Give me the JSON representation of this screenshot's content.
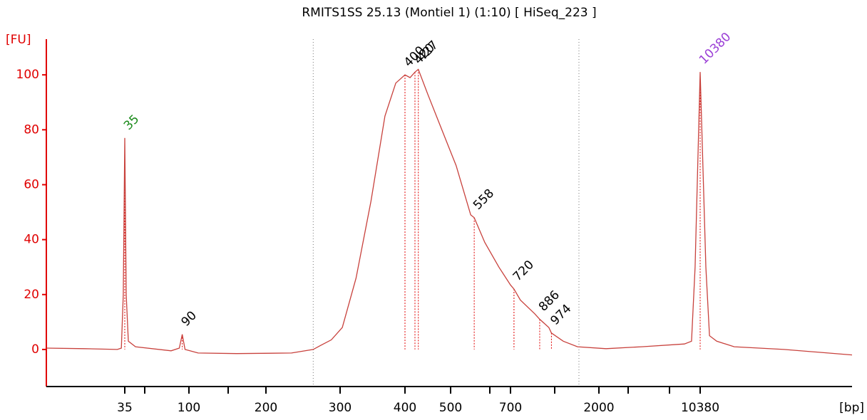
{
  "chart_data": {
    "type": "line",
    "title": "RMITS1SS 25.13 (Montiel 1) (1:10)  [ HiSeq_223 ]",
    "ylabel": "[FU]",
    "xlabel": "[bp]",
    "color": "#c8413c",
    "axis_color": "#e00000",
    "ylim": [
      -13.5,
      113
    ],
    "yticks": [
      0,
      20,
      40,
      60,
      80,
      100
    ],
    "xlim": [
      9,
      73300
    ],
    "xticks": [
      35,
      {
        "value": 50,
        "label": null
      },
      100,
      {
        "value": 150,
        "label": null
      },
      200,
      300,
      400,
      500,
      {
        "value": 600,
        "label": null
      },
      700,
      {
        "value": 1000,
        "label": null
      },
      2000,
      {
        "value": 3000,
        "label": null
      },
      {
        "value": 7000,
        "label": null
      },
      10380
    ],
    "grid": false,
    "x": [
      9,
      17.4,
      30.8,
      33,
      34.1,
      35,
      35.9,
      37.3,
      42.4,
      75.6,
      86,
      90,
      94,
      110,
      160,
      230,
      259,
      270,
      286,
      303,
      322,
      344,
      366,
      384,
      400,
      410,
      420,
      427,
      447,
      479,
      513,
      549,
      558,
      586,
      642,
      700,
      720,
      758,
      851,
      886,
      954,
      974,
      1143,
      1430,
      2208,
      3964,
      8475,
      9288,
      9726,
      10380,
      11170,
      11701,
      12843,
      16095,
      30580,
      73300
    ],
    "values": [
      0.5,
      0.3,
      0,
      0.5,
      20,
      77,
      20,
      3,
      1,
      -0.5,
      0.5,
      5.5,
      0,
      -1.3,
      -1.5,
      -1.3,
      0,
      1.5,
      3.5,
      8,
      26,
      54,
      85,
      97,
      100,
      99,
      101,
      102,
      93,
      80,
      67,
      49,
      48,
      39,
      30,
      23.5,
      22,
      18,
      13,
      11,
      8,
      6,
      3,
      1,
      0.3,
      1,
      2,
      3,
      30,
      101,
      30,
      5,
      3,
      1,
      0,
      -2
    ],
    "region": [
      259,
      1462
    ],
    "peaks": [
      {
        "x": 35,
        "y": 77,
        "color": "#1a8a1a"
      },
      {
        "x": 90,
        "y": 5.5,
        "color": "#000000"
      },
      {
        "x": 400,
        "y": 100,
        "color": "#000000"
      },
      {
        "x": 420,
        "y": 101,
        "color": "#000000"
      },
      {
        "x": 427,
        "y": 102,
        "color": "#000000"
      },
      {
        "x": 558,
        "y": 48,
        "color": "#000000"
      },
      {
        "x": 720,
        "y": 22,
        "color": "#000000"
      },
      {
        "x": 886,
        "y": 11,
        "color": "#000000"
      },
      {
        "x": 974,
        "y": 6,
        "color": "#000000"
      },
      {
        "x": 10380,
        "y": 101,
        "color": "#9b3fd6"
      }
    ]
  }
}
